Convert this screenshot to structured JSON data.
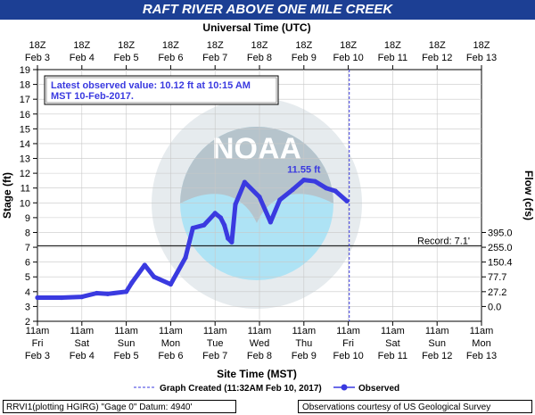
{
  "title": "RAFT RIVER ABOVE ONE MILE CREEK",
  "colors": {
    "title_bg": "#1c3f94",
    "series": "#3a3ae0",
    "annotation": "#3a3ae0",
    "noaa_light": "#aee3f5",
    "noaa_dark": "#b6c4cc"
  },
  "icons": {
    "logo": "noaa-logo-watermark"
  },
  "latest_box": {
    "line1": "Latest observed value: 10.12 ft at 10:15 AM",
    "line2": "MST 10-Feb-2017."
  },
  "peak_label": "11.55 ft",
  "record_label": "Record: 7.1'",
  "legend": {
    "created": "Graph Created (11:32AM Feb 10, 2017)",
    "observed": "Observed"
  },
  "footer": {
    "left": "RRVI1(plotting HGIRG) \"Gage 0\" Datum: 4940'",
    "right": "Observations courtesy of US Geological Survey"
  },
  "chart_data": {
    "type": "line",
    "title": "RAFT RIVER ABOVE ONE MILE CREEK",
    "top_axis_label": "Universal Time (UTC)",
    "xlabel": "Site Time (MST)",
    "ylabel": "Stage (ft)",
    "y2label": "Flow (cfs)",
    "ylim": [
      2,
      19
    ],
    "yticks": [
      2,
      3,
      4,
      5,
      6,
      7,
      8,
      9,
      10,
      11,
      12,
      13,
      14,
      15,
      16,
      17,
      18,
      19
    ],
    "xlim": [
      "2017-02-03 11:00",
      "2017-02-13 11:00"
    ],
    "bottom_ticks": [
      {
        "l1": "11am",
        "l2": "Fri",
        "l3": "Feb 3"
      },
      {
        "l1": "11am",
        "l2": "Sat",
        "l3": "Feb 4"
      },
      {
        "l1": "11am",
        "l2": "Sun",
        "l3": "Feb 5"
      },
      {
        "l1": "11am",
        "l2": "Mon",
        "l3": "Feb 6"
      },
      {
        "l1": "11am",
        "l2": "Tue",
        "l3": "Feb 7"
      },
      {
        "l1": "11am",
        "l2": "Wed",
        "l3": "Feb 8"
      },
      {
        "l1": "11am",
        "l2": "Thu",
        "l3": "Feb 9"
      },
      {
        "l1": "11am",
        "l2": "Fri",
        "l3": "Feb 10"
      },
      {
        "l1": "11am",
        "l2": "Sat",
        "l3": "Feb 11"
      },
      {
        "l1": "11am",
        "l2": "Sun",
        "l3": "Feb 12"
      },
      {
        "l1": "11am",
        "l2": "Mon",
        "l3": "Feb 13"
      }
    ],
    "top_ticks": [
      {
        "l1": "18Z",
        "l2": "Feb 3"
      },
      {
        "l1": "18Z",
        "l2": "Feb 4"
      },
      {
        "l1": "18Z",
        "l2": "Feb 5"
      },
      {
        "l1": "18Z",
        "l2": "Feb 6"
      },
      {
        "l1": "18Z",
        "l2": "Feb 7"
      },
      {
        "l1": "18Z",
        "l2": "Feb 8"
      },
      {
        "l1": "18Z",
        "l2": "Feb 9"
      },
      {
        "l1": "18Z",
        "l2": "Feb 10"
      },
      {
        "l1": "18Z",
        "l2": "Feb 11"
      },
      {
        "l1": "18Z",
        "l2": "Feb 12"
      },
      {
        "l1": "18Z",
        "l2": "Feb 13"
      }
    ],
    "flow_ticks": [
      {
        "stage": 8,
        "label": "395.0"
      },
      {
        "stage": 7,
        "label": "255.0"
      },
      {
        "stage": 6,
        "label": "150.4"
      },
      {
        "stage": 5,
        "label": "77.7"
      },
      {
        "stage": 4,
        "label": "27.2"
      },
      {
        "stage": 3,
        "label": "0.0"
      }
    ],
    "record_stage": 7.1,
    "graph_created": "2017-02-10 11:32",
    "series": [
      {
        "name": "Observed",
        "x": [
          "2017-02-03 11:00",
          "2017-02-04 00:00",
          "2017-02-04 11:00",
          "2017-02-04 19:00",
          "2017-02-05 01:00",
          "2017-02-05 11:00",
          "2017-02-05 14:00",
          "2017-02-05 21:00",
          "2017-02-06 02:00",
          "2017-02-06 11:00",
          "2017-02-06 19:00",
          "2017-02-06 23:00",
          "2017-02-07 05:00",
          "2017-02-07 11:00",
          "2017-02-07 14:00",
          "2017-02-07 16:00",
          "2017-02-07 18:00",
          "2017-02-07 20:00",
          "2017-02-07 22:00",
          "2017-02-08 03:00",
          "2017-02-08 11:00",
          "2017-02-08 17:00",
          "2017-02-08 22:00",
          "2017-02-09 05:00",
          "2017-02-09 11:00",
          "2017-02-09 17:00",
          "2017-02-09 23:00",
          "2017-02-10 04:00",
          "2017-02-10 10:15"
        ],
        "y": [
          3.6,
          3.6,
          3.65,
          3.9,
          3.85,
          4.0,
          4.6,
          5.8,
          5.0,
          4.5,
          6.3,
          8.3,
          8.5,
          9.3,
          9.0,
          8.5,
          7.6,
          7.35,
          9.9,
          11.4,
          10.4,
          8.7,
          10.2,
          10.9,
          11.55,
          11.45,
          11.0,
          10.8,
          10.12
        ]
      }
    ]
  }
}
